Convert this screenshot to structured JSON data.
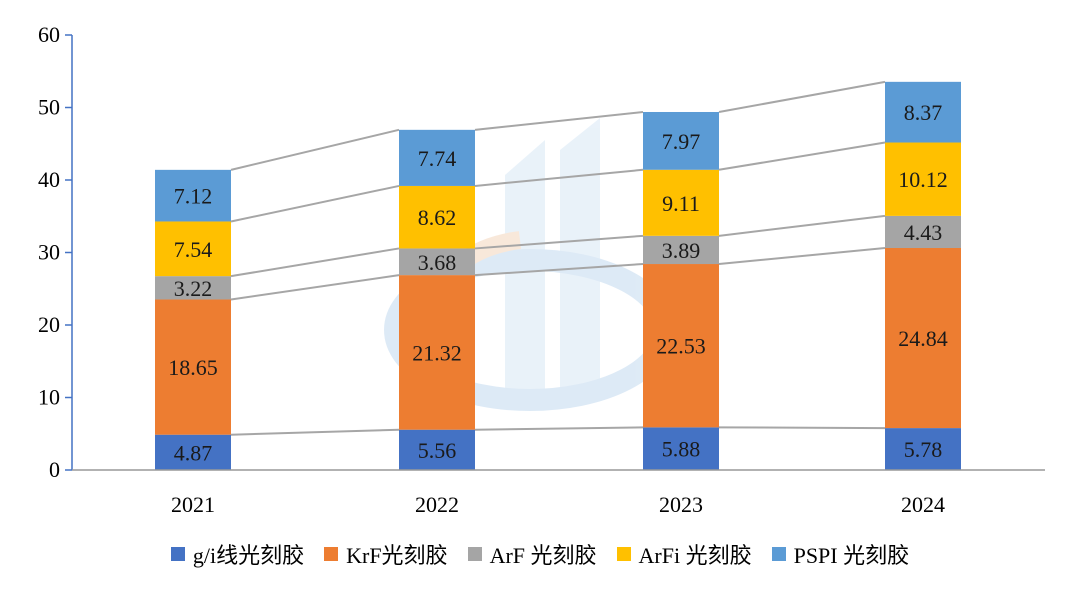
{
  "chart_data": {
    "type": "stacked-bar",
    "title": "",
    "xlabel": "",
    "ylabel": "",
    "ylim": [
      0,
      60
    ],
    "yticks": [
      0,
      10,
      20,
      30,
      40,
      50,
      60
    ],
    "categories": [
      "2021",
      "2022",
      "2023",
      "2024"
    ],
    "series": [
      {
        "name": "g/i线光刻胶",
        "color": "#4472C4",
        "values": [
          4.87,
          5.56,
          5.88,
          5.78
        ]
      },
      {
        "name": "KrF光刻胶",
        "color": "#ED7D31",
        "values": [
          18.65,
          21.32,
          22.53,
          24.84
        ]
      },
      {
        "name": "ArF 光刻胶",
        "color": "#A5A5A5",
        "values": [
          3.22,
          3.68,
          3.89,
          4.43
        ]
      },
      {
        "name": "ArFi 光刻胶",
        "color": "#FFC000",
        "values": [
          7.54,
          8.62,
          9.11,
          10.12
        ]
      },
      {
        "name": "PSPI 光刻胶",
        "color": "#5B9BD5",
        "values": [
          7.12,
          7.74,
          7.97,
          8.37
        ]
      }
    ],
    "value_labels": [
      [
        "4.87",
        "5.56",
        "5.88",
        "5.78"
      ],
      [
        "18.65",
        "21.32",
        "22.53",
        "24.84"
      ],
      [
        "3.22",
        "3.68",
        "3.89",
        "4.43"
      ],
      [
        "7.54",
        "8.62",
        "9.11",
        "10.12"
      ],
      [
        "7.12",
        "7.74",
        "7.97",
        "8.37"
      ]
    ],
    "series_lines": true,
    "legend_position": "bottom"
  },
  "colors": {
    "axis": "#4472C4",
    "connector": "#A6A6A6"
  }
}
